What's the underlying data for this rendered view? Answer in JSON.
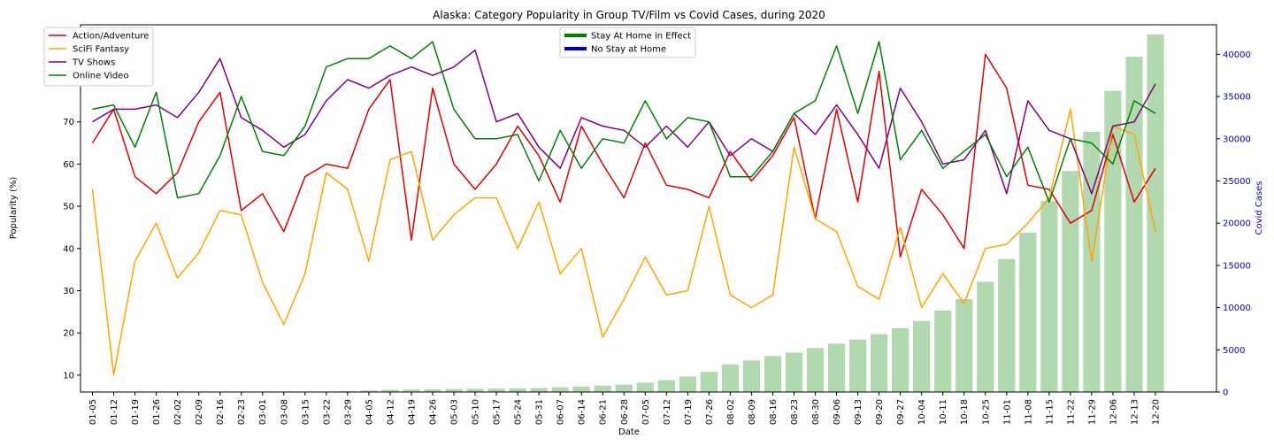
{
  "chart_data": {
    "type": "line",
    "title": "Alaska: Category Popularity in Group TV/Film vs Covid Cases, during 2020",
    "xlabel": "Date",
    "ylabel": "Popularity (%)",
    "y2label": "Covid Cases",
    "ylim": [
      6,
      93
    ],
    "y2lim": [
      0,
      43500
    ],
    "yticks": [
      10,
      20,
      30,
      40,
      50,
      60,
      70,
      80,
      90
    ],
    "y2ticks": [
      0,
      5000,
      10000,
      15000,
      20000,
      25000,
      30000,
      35000,
      40000
    ],
    "categories": [
      "01-05",
      "01-12",
      "01-19",
      "01-26",
      "02-02",
      "02-09",
      "02-16",
      "02-23",
      "03-01",
      "03-08",
      "03-15",
      "03-22",
      "03-29",
      "04-05",
      "04-12",
      "04-19",
      "04-26",
      "05-03",
      "05-10",
      "05-17",
      "05-24",
      "05-31",
      "06-07",
      "06-14",
      "06-21",
      "06-28",
      "07-05",
      "07-12",
      "07-19",
      "07-26",
      "08-02",
      "08-09",
      "08-16",
      "08-23",
      "08-30",
      "09-06",
      "09-13",
      "09-20",
      "09-27",
      "10-04",
      "10-11",
      "10-18",
      "10-25",
      "11-01",
      "11-08",
      "11-15",
      "11-22",
      "11-29",
      "12-06",
      "12-13",
      "12-20"
    ],
    "series": [
      {
        "name": "Action/Adventure",
        "color": "#e00000",
        "values": [
          65,
          73,
          57,
          53,
          58,
          70,
          77,
          49,
          53,
          44,
          57,
          60,
          59,
          73,
          80,
          42,
          78,
          60,
          54,
          60,
          69,
          62,
          51,
          69,
          60,
          52,
          65,
          55,
          54,
          52,
          63,
          56,
          62,
          71,
          47,
          73,
          51,
          82,
          38,
          54,
          48,
          40,
          86,
          78,
          55,
          54,
          46,
          49,
          67,
          51,
          59
        ]
      },
      {
        "name": "SciFi Fantasy",
        "color": "#ffa500",
        "values": [
          54,
          10,
          37,
          46,
          33,
          39,
          49,
          48,
          32,
          22,
          34,
          58,
          54,
          37,
          61,
          63,
          42,
          48,
          52,
          52,
          40,
          51,
          34,
          40,
          19,
          28,
          38,
          29,
          30,
          50,
          29,
          26,
          29,
          64,
          47,
          44,
          31,
          28,
          45,
          26,
          34,
          27,
          40,
          41,
          46,
          52,
          73,
          37,
          69,
          67,
          44
        ]
      },
      {
        "name": "TV Shows",
        "color": "#800080",
        "values": [
          70,
          73,
          73,
          74,
          71,
          77,
          85,
          71,
          68,
          64,
          67,
          75,
          80,
          78,
          81,
          83,
          81,
          83,
          87,
          70,
          72,
          64,
          59,
          71,
          69,
          68,
          64,
          69,
          64,
          70,
          62,
          66,
          63,
          72,
          67,
          74,
          67,
          59,
          78,
          70,
          60,
          61,
          68,
          53,
          75,
          68,
          66,
          53,
          69,
          70,
          79
        ]
      },
      {
        "name": "Online Video",
        "color": "#008000",
        "values": [
          73,
          74,
          64,
          77,
          52,
          53,
          62,
          76,
          63,
          62,
          69,
          83,
          85,
          85,
          88,
          85,
          89,
          73,
          66,
          66,
          67,
          56,
          68,
          59,
          66,
          65,
          75,
          66,
          71,
          70,
          57,
          57,
          63,
          72,
          75,
          88,
          72,
          89,
          61,
          68,
          59,
          63,
          67,
          57,
          64,
          51,
          66,
          65,
          60,
          75,
          72
        ]
      }
    ],
    "bars": {
      "name": "Covid Cases",
      "color": "#b2d8b0",
      "values": [
        0,
        0,
        0,
        0,
        0,
        0,
        0,
        0,
        0,
        0,
        0,
        0,
        90,
        190,
        270,
        300,
        330,
        360,
        380,
        400,
        430,
        470,
        560,
        650,
        760,
        880,
        1110,
        1410,
        1840,
        2390,
        3260,
        3740,
        4260,
        4680,
        5210,
        5720,
        6220,
        6860,
        7550,
        8410,
        9650,
        11010,
        13060,
        15760,
        18880,
        22620,
        26180,
        30830,
        35670,
        39710,
        42360
      ]
    },
    "legend_left": {
      "placement": "upper-left",
      "entries": [
        "Action/Adventure",
        "SciFi Fantasy",
        "TV Shows",
        "Online Video"
      ]
    },
    "legend_center": {
      "placement": "upper-center",
      "entries": [
        {
          "label": "Stay At Home in Effect",
          "color": "#008000"
        },
        {
          "label": "No Stay at Home",
          "color": "#0000cc"
        }
      ]
    },
    "right_axis_color": "#0000cc"
  }
}
